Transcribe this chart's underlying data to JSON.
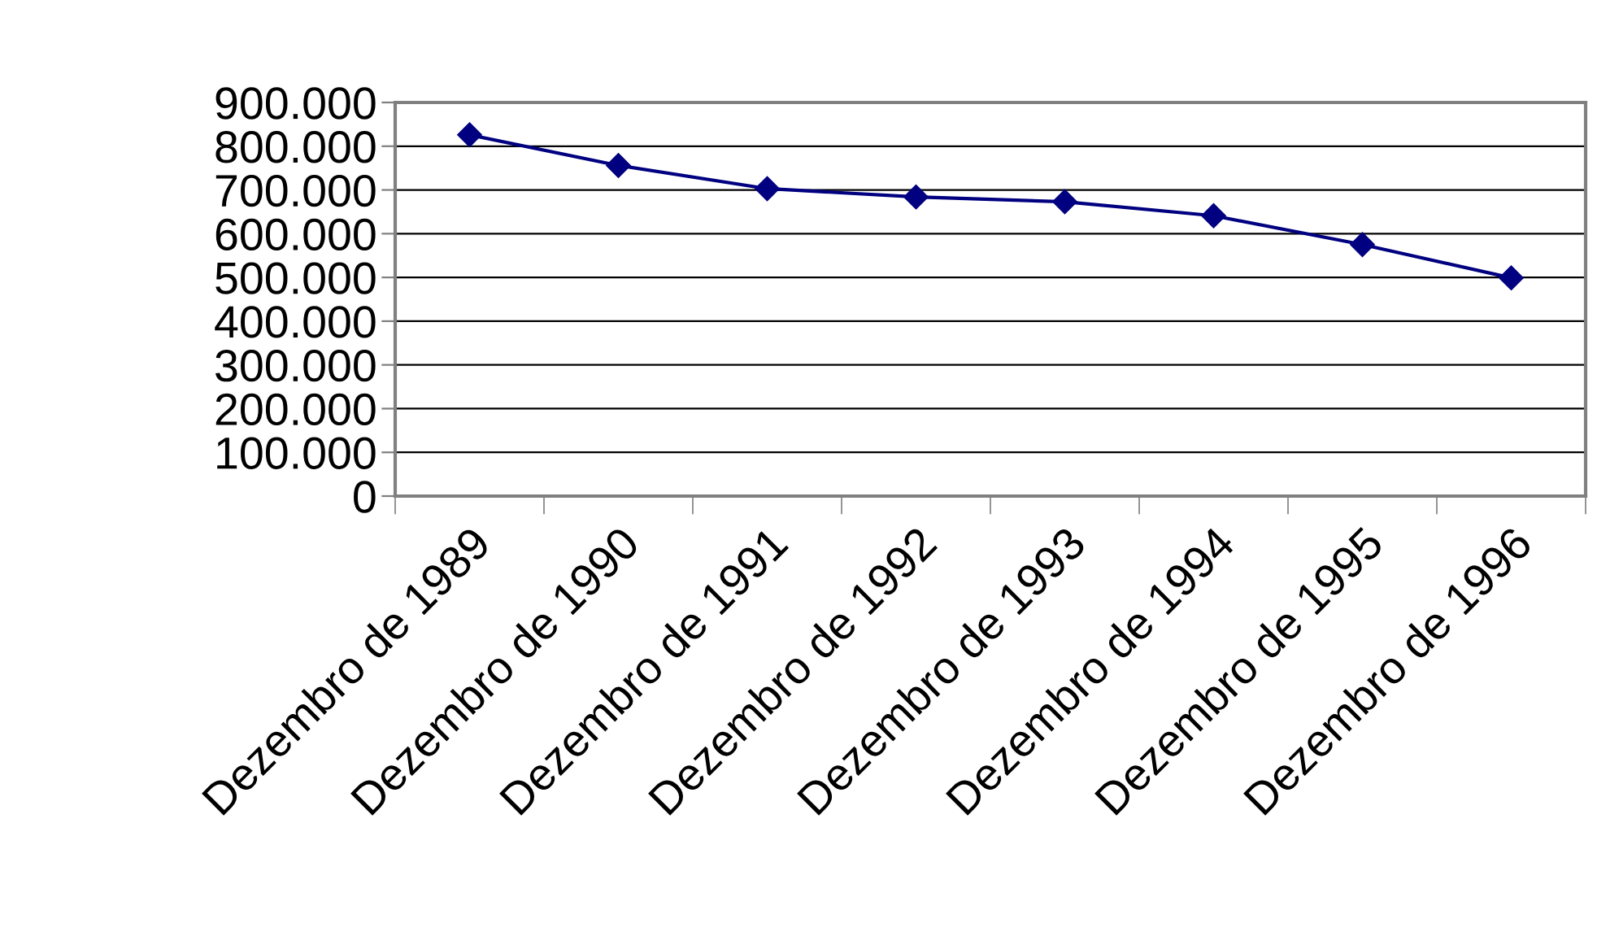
{
  "chart_data": {
    "type": "line",
    "categories": [
      "Dezembro de 1989",
      "Dezembro de 1990",
      "Dezembro de 1991",
      "Dezembro de 1992",
      "Dezembro de 1993",
      "Dezembro de 1994",
      "Dezembro de 1995",
      "Dezembro de 1996"
    ],
    "series": [
      {
        "color": "#000080",
        "values": [
          826000,
          756000,
          703000,
          684000,
          673000,
          641000,
          575000,
          499000
        ]
      }
    ],
    "ylim": [
      0,
      900000
    ],
    "yticks": [
      0,
      {
        "value": 100000,
        "label": "100.000"
      },
      {
        "value": 200000,
        "label": "200.000"
      },
      {
        "value": 300000,
        "label": "300.000"
      },
      {
        "value": 400000,
        "label": "400.000"
      },
      {
        "value": 500000,
        "label": "500.000"
      },
      {
        "value": 600000,
        "label": "600.000"
      },
      {
        "value": 700000,
        "label": "700.000"
      },
      {
        "value": 800000,
        "label": "800.000"
      },
      {
        "value": 900000,
        "label": "900.000"
      }
    ],
    "grid": "y",
    "marker": "diamond",
    "line_style": "solid",
    "legend": false
  }
}
